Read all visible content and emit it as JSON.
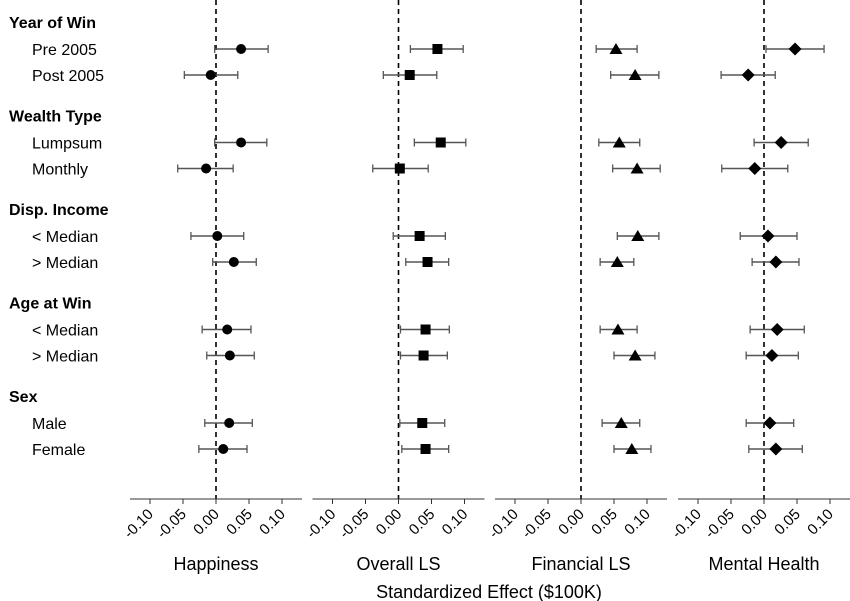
{
  "chart_data": {
    "type": "scatter",
    "subtype": "forest-plot",
    "xlabel": "Standardized Effect ($100K)",
    "xlim": [
      -0.13,
      0.13
    ],
    "xticks": [
      -0.1,
      -0.05,
      0.0,
      0.05,
      0.1
    ],
    "xtick_labels": [
      "-0.10",
      "-0.05",
      "0.00",
      "0.05",
      "0.10"
    ],
    "reference_line": 0.0,
    "grid": false,
    "groups": [
      {
        "label": "Year of Win",
        "rows": [
          "Pre 2005",
          "Post 2005"
        ]
      },
      {
        "label": "Wealth Type",
        "rows": [
          "Lumpsum",
          "Monthly"
        ]
      },
      {
        "label": "Disp. Income",
        "rows": [
          "< Median",
          "> Median"
        ]
      },
      {
        "label": "Age at Win",
        "rows": [
          "< Median",
          "> Median"
        ]
      },
      {
        "label": "Sex",
        "rows": [
          "Male",
          "Female"
        ]
      }
    ],
    "panels": [
      {
        "title": "Happiness",
        "marker": "circle",
        "estimates": [
          0.038,
          -0.008,
          0.038,
          -0.015,
          0.002,
          0.027,
          0.017,
          0.021,
          0.02,
          0.011
        ],
        "ci_low": [
          -0.002,
          -0.048,
          -0.002,
          -0.058,
          -0.038,
          -0.005,
          -0.021,
          -0.014,
          -0.017,
          -0.026
        ],
        "ci_high": [
          0.079,
          0.033,
          0.077,
          0.026,
          0.042,
          0.061,
          0.053,
          0.058,
          0.055,
          0.047
        ]
      },
      {
        "title": "Overall LS",
        "marker": "square",
        "estimates": [
          0.059,
          0.017,
          0.064,
          0.002,
          0.032,
          0.044,
          0.041,
          0.038,
          0.036,
          0.041
        ],
        "ci_low": [
          0.018,
          -0.023,
          0.024,
          -0.039,
          -0.008,
          0.011,
          0.003,
          0.003,
          0.002,
          0.005
        ],
        "ci_high": [
          0.098,
          0.058,
          0.102,
          0.045,
          0.071,
          0.076,
          0.077,
          0.074,
          0.07,
          0.076
        ]
      },
      {
        "title": "Financial LS",
        "marker": "triangle",
        "estimates": [
          0.053,
          0.082,
          0.058,
          0.085,
          0.086,
          0.055,
          0.056,
          0.082,
          0.061,
          0.077
        ],
        "ci_low": [
          0.023,
          0.045,
          0.027,
          0.048,
          0.055,
          0.029,
          0.029,
          0.05,
          0.032,
          0.05
        ],
        "ci_high": [
          0.085,
          0.118,
          0.089,
          0.12,
          0.118,
          0.08,
          0.085,
          0.112,
          0.089,
          0.106
        ]
      },
      {
        "title": "Mental Health",
        "marker": "diamond",
        "estimates": [
          0.047,
          -0.024,
          0.026,
          -0.014,
          0.006,
          0.018,
          0.02,
          0.012,
          0.009,
          0.018
        ],
        "ci_low": [
          0.003,
          -0.065,
          -0.015,
          -0.064,
          -0.036,
          -0.018,
          -0.021,
          -0.027,
          -0.027,
          -0.023
        ],
        "ci_high": [
          0.091,
          0.017,
          0.067,
          0.036,
          0.05,
          0.053,
          0.061,
          0.052,
          0.045,
          0.058
        ]
      }
    ]
  }
}
